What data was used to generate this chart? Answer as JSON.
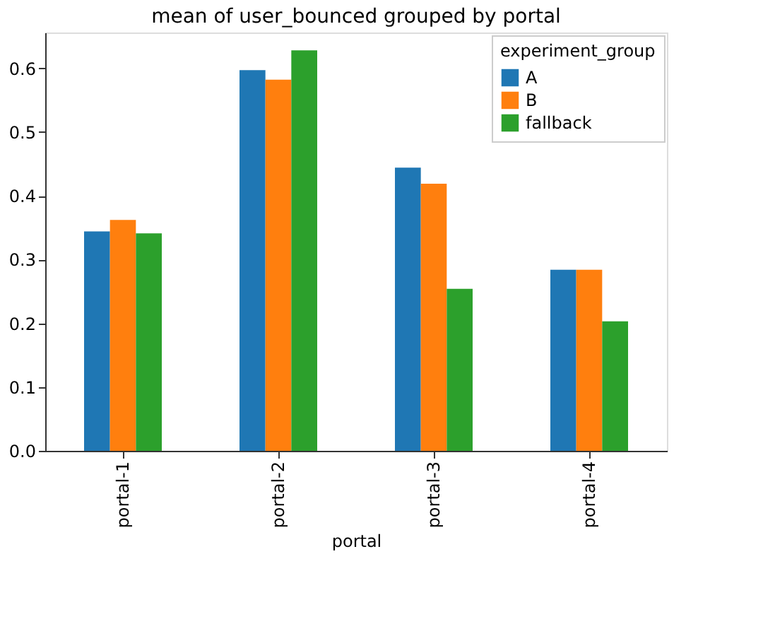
{
  "chart_data": {
    "type": "bar",
    "title": "mean of user_bounced grouped by portal",
    "xlabel": "portal",
    "legend_title": "experiment_group",
    "categories": [
      "portal-1",
      "portal-2",
      "portal-3",
      "portal-4"
    ],
    "series": [
      {
        "name": "A",
        "color": "#1f77b4",
        "values": [
          0.344,
          0.597,
          0.444,
          0.284
        ]
      },
      {
        "name": "B",
        "color": "#ff7f0e",
        "values": [
          0.362,
          0.582,
          0.419,
          0.284
        ]
      },
      {
        "name": "fallback",
        "color": "#2ca02c",
        "values": [
          0.341,
          0.628,
          0.254,
          0.203
        ]
      }
    ],
    "ylim": [
      0,
      0.656
    ],
    "yticks": [
      {
        "value": 0,
        "label": "0.0"
      },
      0.1,
      0.2,
      0.3,
      0.4,
      0.5,
      0.6
    ],
    "grid": false,
    "legend": "top right"
  }
}
